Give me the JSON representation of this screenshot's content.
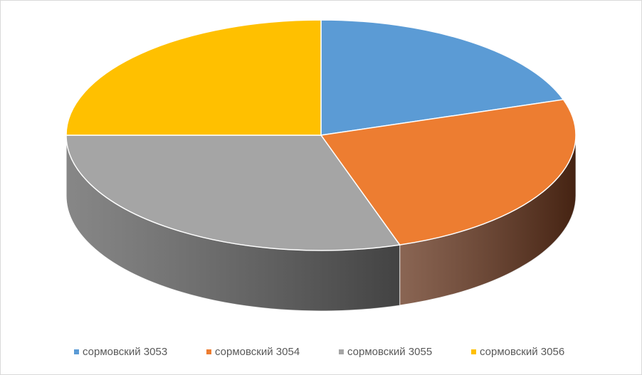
{
  "chart_data": {
    "type": "pie3d",
    "categories": [
      "сормовский 3053",
      "сормовский 3054",
      "сормовский 3055",
      "сормовский 3056"
    ],
    "values": [
      20,
      25,
      30,
      25
    ],
    "colors": [
      "#5b9bd5",
      "#ed7d31",
      "#a5a5a5",
      "#ffc000"
    ],
    "side_colors": [
      "#2e5a85",
      "#63321a",
      "#5f5f5f",
      "#8a6800"
    ],
    "legend": "bottom"
  }
}
